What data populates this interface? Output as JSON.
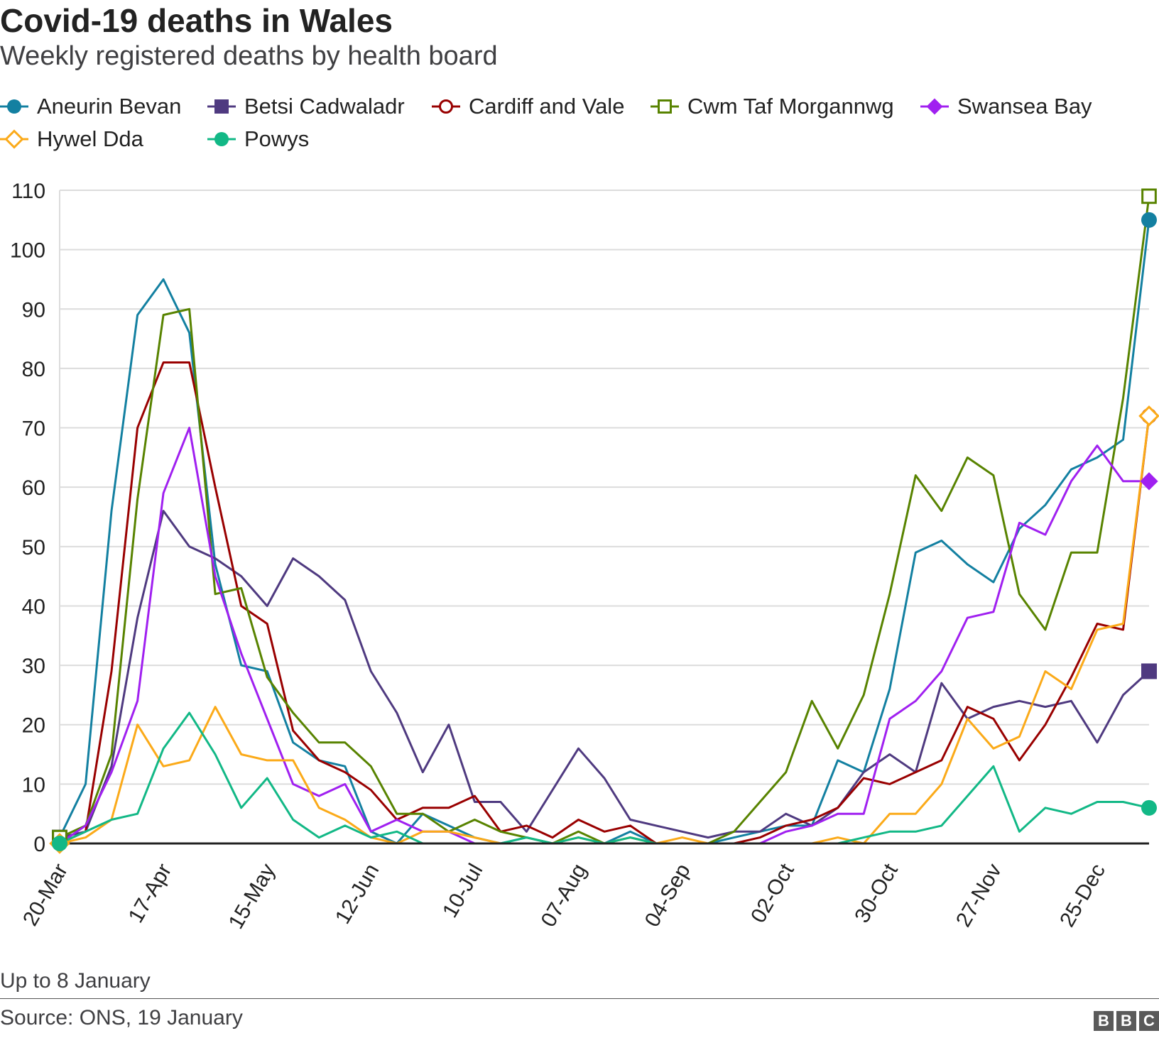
{
  "header": {
    "title": "Covid-19 deaths in Wales",
    "subtitle": "Weekly registered deaths by health board"
  },
  "footer": {
    "note": "Up to 8 January",
    "source": "Source: ONS, 19 January",
    "logo_letters": [
      "B",
      "B",
      "C"
    ]
  },
  "chart_data": {
    "type": "line",
    "title": "Covid-19 deaths in Wales",
    "subtitle": "Weekly registered deaths by health board",
    "xlabel": "",
    "ylabel": "",
    "ylim": [
      0,
      110
    ],
    "yticks": [
      0,
      10,
      20,
      30,
      40,
      50,
      60,
      70,
      80,
      90,
      100,
      110
    ],
    "grid": true,
    "legend_position": "top",
    "x": [
      "20-Mar",
      "27-Mar",
      "03-Apr",
      "10-Apr",
      "17-Apr",
      "24-Apr",
      "01-May",
      "08-May",
      "15-May",
      "22-May",
      "29-May",
      "05-Jun",
      "12-Jun",
      "19-Jun",
      "26-Jun",
      "03-Jul",
      "10-Jul",
      "17-Jul",
      "24-Jul",
      "31-Jul",
      "07-Aug",
      "14-Aug",
      "21-Aug",
      "28-Aug",
      "04-Sep",
      "11-Sep",
      "18-Sep",
      "25-Sep",
      "02-Oct",
      "09-Oct",
      "16-Oct",
      "23-Oct",
      "30-Oct",
      "06-Nov",
      "13-Nov",
      "20-Nov",
      "27-Nov",
      "04-Dec",
      "11-Dec",
      "18-Dec",
      "25-Dec",
      "01-Jan",
      "08-Jan"
    ],
    "xtick_labels": [
      "20-Mar",
      "17-Apr",
      "15-May",
      "12-Jun",
      "10-Jul",
      "07-Aug",
      "04-Sep",
      "02-Oct",
      "30-Oct",
      "27-Nov",
      "25-Dec"
    ],
    "series": [
      {
        "name": "Aneurin Bevan",
        "color": "#1380a1",
        "marker": "filled-circle",
        "values": [
          1,
          10,
          56,
          89,
          95,
          86,
          47,
          30,
          29,
          17,
          14,
          13,
          2,
          0,
          5,
          3,
          1,
          0,
          1,
          0,
          1,
          0,
          2,
          0,
          0,
          0,
          1,
          2,
          3,
          3,
          14,
          12,
          26,
          49,
          51,
          47,
          44,
          53,
          57,
          63,
          65,
          68,
          105
        ]
      },
      {
        "name": "Betsi Cadwaladr",
        "color": "#4f3a80",
        "marker": "filled-square",
        "values": [
          1,
          2,
          13,
          38,
          56,
          50,
          48,
          45,
          40,
          48,
          45,
          41,
          29,
          22,
          12,
          20,
          7,
          7,
          2,
          9,
          16,
          11,
          4,
          3,
          2,
          1,
          2,
          2,
          5,
          3,
          6,
          12,
          15,
          12,
          27,
          21,
          23,
          24,
          23,
          24,
          17,
          25,
          29
        ]
      },
      {
        "name": "Cardiff and Vale",
        "color": "#990000",
        "marker": "hollow-circle",
        "values": [
          0,
          2,
          29,
          70,
          81,
          81,
          60,
          40,
          37,
          19,
          14,
          12,
          9,
          4,
          6,
          6,
          8,
          2,
          3,
          1,
          4,
          2,
          3,
          0,
          0,
          0,
          0,
          1,
          3,
          4,
          6,
          11,
          10,
          12,
          14,
          23,
          21,
          14,
          20,
          28,
          37,
          36,
          72
        ]
      },
      {
        "name": "Cwm Taf Morgannwg",
        "color": "#588300",
        "marker": "hollow-square",
        "values": [
          1,
          3,
          15,
          58,
          89,
          90,
          42,
          43,
          28,
          22,
          17,
          17,
          13,
          5,
          5,
          2,
          4,
          2,
          1,
          0,
          2,
          0,
          1,
          0,
          0,
          0,
          2,
          7,
          12,
          24,
          16,
          25,
          42,
          62,
          56,
          65,
          62,
          42,
          36,
          49,
          49,
          75,
          109
        ]
      },
      {
        "name": "Swansea Bay",
        "color": "#a020f0",
        "marker": "filled-diamond",
        "values": [
          0,
          3,
          12,
          24,
          59,
          70,
          45,
          32,
          21,
          10,
          8,
          10,
          2,
          4,
          2,
          2,
          0,
          0,
          0,
          0,
          0,
          0,
          0,
          0,
          0,
          0,
          0,
          0,
          2,
          3,
          5,
          5,
          21,
          24,
          29,
          38,
          39,
          54,
          52,
          61,
          67,
          61,
          61
        ]
      },
      {
        "name": "Hywel Dda",
        "color": "#fbaa19",
        "marker": "hollow-diamond",
        "values": [
          0,
          1,
          4,
          20,
          13,
          14,
          23,
          15,
          14,
          14,
          6,
          4,
          1,
          0,
          2,
          2,
          1,
          0,
          0,
          0,
          1,
          0,
          1,
          0,
          1,
          0,
          0,
          0,
          0,
          0,
          1,
          0,
          5,
          5,
          10,
          21,
          16,
          18,
          29,
          26,
          36,
          37,
          72
        ]
      },
      {
        "name": "Powys",
        "color": "#12b886",
        "marker": "filled-circle",
        "values": [
          0,
          2,
          4,
          5,
          16,
          22,
          15,
          6,
          11,
          4,
          1,
          3,
          1,
          2,
          0,
          0,
          0,
          0,
          1,
          0,
          1,
          0,
          1,
          0,
          0,
          0,
          0,
          0,
          0,
          0,
          0,
          1,
          2,
          2,
          3,
          8,
          13,
          2,
          6,
          5,
          7,
          7,
          6
        ]
      }
    ]
  }
}
